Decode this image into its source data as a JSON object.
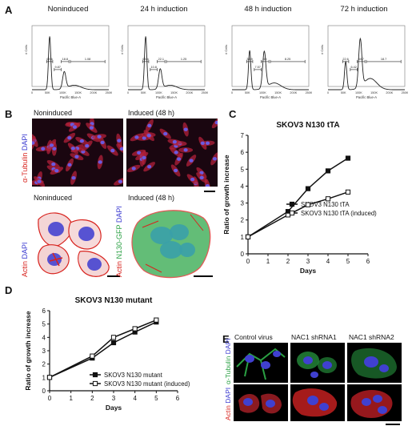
{
  "panels": {
    "a": "A",
    "b": "B",
    "c": "C",
    "d": "D",
    "e": "E"
  },
  "facs": {
    "ylabel": "# Cells",
    "xlabel": "Pacific Blue-A",
    "ticks": [
      "0",
      "50K",
      "100K",
      "150K",
      "200K",
      "250K"
    ],
    "plots": [
      {
        "title": "Noninduced",
        "gates": [
          "69.6",
          "9.87",
          "18.8",
          "1.08"
        ]
      },
      {
        "title": "24 h induction",
        "gates": [
          "63.4",
          "10.8",
          "22.1",
          "1.25"
        ]
      },
      {
        "title": "48 h induction",
        "gates": [
          "34.9",
          "7.57",
          "48",
          "8.25"
        ]
      },
      {
        "title": "72 h induction",
        "gates": [
          "22.6",
          "6.42",
          "50.7",
          "18.7"
        ]
      }
    ]
  },
  "panel_b": {
    "top_left_title": "Noninduced",
    "top_right_title": "Induced (48 h)",
    "top_label_tubulin": "α-Tubulin",
    "top_label_dapi": "DAPI",
    "bottom_left_title": "Noninduced",
    "bottom_right_title": "Induced (48 h)",
    "bottom_left_label_actin": "Actin",
    "bottom_left_label_dapi": "DAPI",
    "bottom_right_label_actin": "Actin",
    "bottom_right_label_gfp": "N130-GFP",
    "bottom_right_label_dapi": "DAPI"
  },
  "panel_e": {
    "col_titles": [
      "Control virus",
      "NAC1 shRNA1",
      "NAC1 shRNA2"
    ],
    "row1_label_tubulin": "α-Tubulin",
    "row1_label_dapi": "DAPI",
    "row2_label_actin": "Actin",
    "row2_label_dapi": "DAPI"
  },
  "colors": {
    "red": "#d8231e",
    "blue": "#3b3bd0",
    "green": "#2aa043"
  },
  "chart_data": [
    {
      "type": "line",
      "title": "SKOV3 N130 tTA",
      "xlabel": "Days",
      "ylabel": "Ratio of growth increase",
      "xlim": [
        0,
        6
      ],
      "ylim": [
        0,
        7
      ],
      "xticks": [
        0,
        1,
        2,
        3,
        4,
        5,
        6
      ],
      "yticks": [
        0,
        1,
        2,
        3,
        4,
        5,
        6,
        7
      ],
      "series": [
        {
          "name": "SKOV3 N130 tTA",
          "marker": "filled-square",
          "x": [
            0,
            2,
            3,
            4,
            5
          ],
          "y": [
            1.0,
            2.5,
            3.85,
            4.9,
            5.65
          ]
        },
        {
          "name": "SKOV3 N130 tTA (induced)",
          "marker": "open-square",
          "x": [
            0,
            2,
            3,
            4,
            5
          ],
          "y": [
            1.0,
            2.3,
            2.9,
            3.25,
            3.65
          ]
        }
      ]
    },
    {
      "type": "line",
      "title": "SKOV3 N130 mutant",
      "xlabel": "Days",
      "ylabel": "Ratio of growth increase",
      "xlim": [
        0,
        6
      ],
      "ylim": [
        0,
        6
      ],
      "xticks": [
        0,
        1,
        2,
        3,
        4,
        5,
        6
      ],
      "yticks": [
        0,
        1,
        2,
        3,
        4,
        5,
        6
      ],
      "series": [
        {
          "name": "SKOV3 N130 mutant",
          "marker": "filled-square",
          "x": [
            0,
            2,
            3,
            4,
            5
          ],
          "y": [
            1.0,
            2.45,
            3.6,
            4.4,
            5.15
          ]
        },
        {
          "name": "SKOV3 N130 mutant (induced)",
          "marker": "open-square",
          "x": [
            0,
            2,
            3,
            4,
            5
          ],
          "y": [
            1.0,
            2.6,
            4.0,
            4.65,
            5.3
          ]
        }
      ]
    }
  ]
}
